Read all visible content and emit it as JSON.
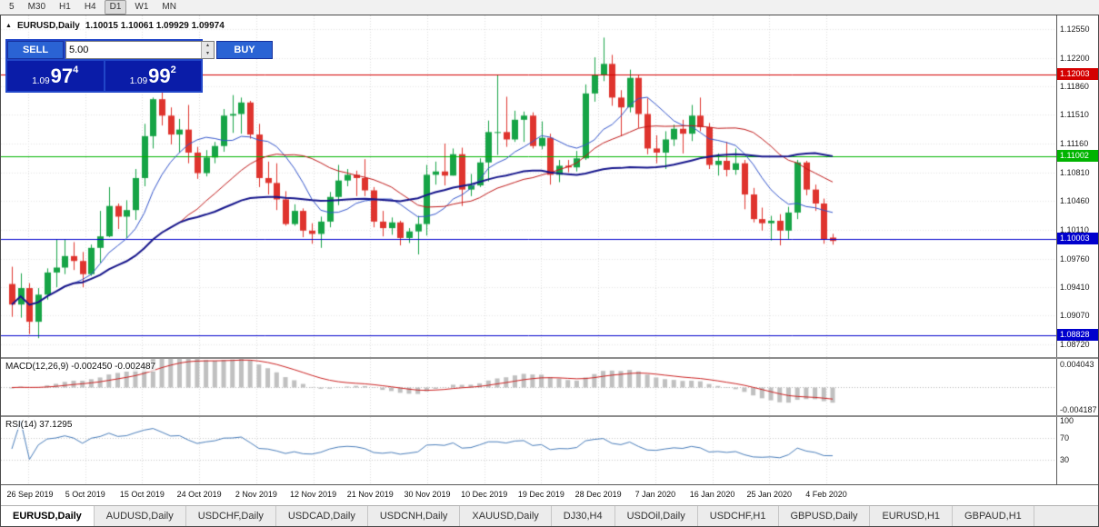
{
  "toolbar": {
    "timeframes": [
      "5",
      "M30",
      "H1",
      "H4",
      "D1",
      "W1",
      "MN"
    ],
    "active": "D1"
  },
  "chart": {
    "header": "EURUSD,Daily",
    "ohlc": "1.10015 1.10061 1.09929 1.09974"
  },
  "trade_panel": {
    "sell_label": "SELL",
    "buy_label": "BUY",
    "volume": "5.00",
    "sell_price": {
      "prefix": "1.09",
      "big": "97",
      "sup": "4"
    },
    "buy_price": {
      "prefix": "1.09",
      "big": "99",
      "sup": "2"
    },
    "colors": {
      "panel": "#2146C8",
      "button": "#2A63D4",
      "price": "#0A1CA8"
    }
  },
  "price_axis": {
    "max": 1.1272,
    "min": 1.0856,
    "ticks": [
      1.1255,
      1.122,
      1.1186,
      1.1151,
      1.1116,
      1.1081,
      1.1046,
      1.1011,
      1.0976,
      1.0941,
      1.0907,
      1.0872
    ]
  },
  "macd_panel": {
    "label": "MACD(12,26,9) -0.002450 -0.002487",
    "axis_top": "0.004043",
    "axis_bottom": "-0.004187"
  },
  "rsi_panel": {
    "label": "RSI(14) 37.1295",
    "axis_ticks": [
      100,
      70,
      30
    ]
  },
  "time_axis": {
    "labels": [
      "26 Sep 2019",
      "5 Oct 2019",
      "15 Oct 2019",
      "24 Oct 2019",
      "2 Nov 2019",
      "12 Nov 2019",
      "21 Nov 2019",
      "30 Nov 2019",
      "10 Dec 2019",
      "19 Dec 2019",
      "28 Dec 2019",
      "7 Jan 2020",
      "16 Jan 2020",
      "25 Jan 2020",
      "4 Feb 2020"
    ]
  },
  "tab_bar": {
    "active_index": 0,
    "tabs": [
      "EURUSD,Daily",
      "AUDUSD,Daily",
      "USDCHF,Daily",
      "USDCAD,Daily",
      "USDCNH,Daily",
      "XAUUSD,Daily",
      "DJ30,H4",
      "USDOil,Daily",
      "USDCHF,H1",
      "GBPUSD,Daily",
      "EURUSD,H1",
      "GBPAUD,H1"
    ]
  },
  "chart_data": {
    "type": "candlestick",
    "symbol": "EURUSD",
    "timeframe": "Daily",
    "title": "EURUSD,Daily",
    "price_range": [
      1.0856,
      1.1272
    ],
    "x_tick_labels": [
      "26 Sep 2019",
      "5 Oct 2019",
      "15 Oct 2019",
      "24 Oct 2019",
      "2 Nov 2019",
      "12 Nov 2019",
      "21 Nov 2019",
      "30 Nov 2019",
      "10 Dec 2019",
      "19 Dec 2019",
      "28 Dec 2019",
      "7 Jan 2020",
      "16 Jan 2020",
      "25 Jan 2020",
      "4 Feb 2020"
    ],
    "colors": {
      "up": "#16A446",
      "down": "#DF342E"
    },
    "candles": [
      [
        1.0945,
        1.0966,
        1.0905,
        1.092
      ],
      [
        1.092,
        1.0958,
        1.0904,
        1.094
      ],
      [
        1.094,
        1.0946,
        1.0884,
        1.0899
      ],
      [
        1.0899,
        1.094,
        1.0879,
        1.0932
      ],
      [
        1.0932,
        1.0964,
        1.0926,
        1.0959
      ],
      [
        1.0959,
        1.0999,
        1.0941,
        1.0965
      ],
      [
        1.0965,
        1.0999,
        1.0957,
        1.0979
      ],
      [
        1.0979,
        1.0996,
        1.0962,
        1.0973
      ],
      [
        1.0973,
        1.0984,
        1.0941,
        1.0957
      ],
      [
        1.0957,
        1.0993,
        1.0955,
        1.0989
      ],
      [
        1.0989,
        1.1034,
        1.0971,
        1.1003
      ],
      [
        1.1003,
        1.1063,
        1.1002,
        1.104
      ],
      [
        1.104,
        1.1043,
        1.1012,
        1.1027
      ],
      [
        1.1027,
        1.1047,
        1.1001,
        1.1035
      ],
      [
        1.1035,
        1.1085,
        1.1023,
        1.1074
      ],
      [
        1.1074,
        1.114,
        1.1064,
        1.1125
      ],
      [
        1.1125,
        1.1172,
        1.111,
        1.117
      ],
      [
        1.117,
        1.1179,
        1.1138,
        1.115
      ],
      [
        1.115,
        1.116,
        1.1115,
        1.1127
      ],
      [
        1.1127,
        1.1146,
        1.1105,
        1.1133
      ],
      [
        1.1133,
        1.1163,
        1.1092,
        1.1105
      ],
      [
        1.1105,
        1.1112,
        1.1073,
        1.108
      ],
      [
        1.108,
        1.1108,
        1.1076,
        1.1099
      ],
      [
        1.1099,
        1.1118,
        1.1092,
        1.1113
      ],
      [
        1.1113,
        1.1158,
        1.1106,
        1.115
      ],
      [
        1.115,
        1.1175,
        1.1129,
        1.1152
      ],
      [
        1.1152,
        1.1172,
        1.1128,
        1.1166
      ],
      [
        1.1166,
        1.1168,
        1.1122,
        1.1127
      ],
      [
        1.1127,
        1.114,
        1.1063,
        1.1074
      ],
      [
        1.1074,
        1.1094,
        1.1054,
        1.1068
      ],
      [
        1.1068,
        1.1092,
        1.1035,
        1.1048
      ],
      [
        1.1048,
        1.1058,
        1.1016,
        1.1018
      ],
      [
        1.1018,
        1.1042,
        1.1016,
        1.1034
      ],
      [
        1.1034,
        1.1037,
        1.1002,
        1.101
      ],
      [
        1.101,
        1.1019,
        1.0994,
        1.1006
      ],
      [
        1.1006,
        1.1027,
        1.0989,
        1.1021
      ],
      [
        1.1021,
        1.1057,
        1.1014,
        1.1051
      ],
      [
        1.1051,
        1.109,
        1.1041,
        1.1071
      ],
      [
        1.1071,
        1.1085,
        1.1064,
        1.1078
      ],
      [
        1.1078,
        1.1083,
        1.1052,
        1.1074
      ],
      [
        1.1074,
        1.1097,
        1.1052,
        1.1059
      ],
      [
        1.1059,
        1.1063,
        1.1014,
        1.1021
      ],
      [
        1.1021,
        1.1034,
        1.1003,
        1.1013
      ],
      [
        1.1013,
        1.1026,
        1.1005,
        1.102
      ],
      [
        1.102,
        1.1022,
        1.0992,
        1.1001
      ],
      [
        1.1001,
        1.1013,
        1.0995,
        1.1009
      ],
      [
        1.1009,
        1.1028,
        1.0981,
        1.1018
      ],
      [
        1.1018,
        1.109,
        1.1004,
        1.1078
      ],
      [
        1.1078,
        1.1094,
        1.1066,
        1.1082
      ],
      [
        1.1082,
        1.1116,
        1.1065,
        1.1077
      ],
      [
        1.1077,
        1.111,
        1.1077,
        1.1103
      ],
      [
        1.1103,
        1.1111,
        1.104,
        1.106
      ],
      [
        1.106,
        1.1079,
        1.1052,
        1.1065
      ],
      [
        1.1065,
        1.1098,
        1.1063,
        1.1093
      ],
      [
        1.1093,
        1.1144,
        1.107,
        1.113
      ],
      [
        1.113,
        1.1199,
        1.1102,
        1.113
      ],
      [
        1.113,
        1.1173,
        1.1112,
        1.1121
      ],
      [
        1.1121,
        1.1156,
        1.1118,
        1.1145
      ],
      [
        1.1145,
        1.1155,
        1.1118,
        1.115
      ],
      [
        1.115,
        1.1154,
        1.111,
        1.1113
      ],
      [
        1.1113,
        1.1143,
        1.1109,
        1.1123
      ],
      [
        1.1123,
        1.1128,
        1.1066,
        1.1078
      ],
      [
        1.1078,
        1.1096,
        1.1069,
        1.1089
      ],
      [
        1.1089,
        1.1096,
        1.1081,
        1.1087
      ],
      [
        1.1087,
        1.1107,
        1.1082,
        1.1098
      ],
      [
        1.1098,
        1.1188,
        1.1096,
        1.1177
      ],
      [
        1.1177,
        1.1221,
        1.1167,
        1.1199
      ],
      [
        1.1199,
        1.1245,
        1.1192,
        1.1213
      ],
      [
        1.1213,
        1.1224,
        1.1162,
        1.1172
      ],
      [
        1.1172,
        1.1181,
        1.1125,
        1.116
      ],
      [
        1.116,
        1.1206,
        1.1154,
        1.1196
      ],
      [
        1.1196,
        1.1199,
        1.1135,
        1.1152
      ],
      [
        1.1152,
        1.1171,
        1.1103,
        1.111
      ],
      [
        1.111,
        1.1126,
        1.1092,
        1.1105
      ],
      [
        1.1105,
        1.1131,
        1.1085,
        1.1121
      ],
      [
        1.1121,
        1.1139,
        1.1113,
        1.1134
      ],
      [
        1.1134,
        1.1145,
        1.1104,
        1.1128
      ],
      [
        1.1128,
        1.1163,
        1.1119,
        1.115
      ],
      [
        1.115,
        1.1172,
        1.1131,
        1.1136
      ],
      [
        1.1136,
        1.1141,
        1.1085,
        1.109
      ],
      [
        1.109,
        1.1104,
        1.1077,
        1.1095
      ],
      [
        1.1095,
        1.1118,
        1.1076,
        1.1084
      ],
      [
        1.1084,
        1.111,
        1.1078,
        1.1092
      ],
      [
        1.1092,
        1.1096,
        1.1036,
        1.1054
      ],
      [
        1.1054,
        1.1062,
        1.102,
        1.1024
      ],
      [
        1.1024,
        1.1038,
        1.101,
        1.1019
      ],
      [
        1.1019,
        1.1028,
        1.0998,
        1.1022
      ],
      [
        1.1022,
        1.103,
        1.0992,
        1.101
      ],
      [
        1.101,
        1.1039,
        1.1,
        1.1032
      ],
      [
        1.1032,
        1.1096,
        1.1024,
        1.1093
      ],
      [
        1.1093,
        1.1095,
        1.1053,
        1.106
      ],
      [
        1.106,
        1.1066,
        1.1034,
        1.1043
      ],
      [
        1.1043,
        1.1049,
        1.0994,
        1.0999
      ],
      [
        1.10015,
        1.10061,
        1.09929,
        1.09974
      ]
    ],
    "moving_averages": [
      {
        "period": 8,
        "color": "#3355CC",
        "width": 1
      },
      {
        "period": 20,
        "color": "#C01818",
        "width": 1
      },
      {
        "period": 45,
        "color": "#16168C",
        "width": 2
      }
    ],
    "levels": [
      {
        "price": 1.12003,
        "color": "#D40000"
      },
      {
        "price": 1.11002,
        "color": "#00B400"
      },
      {
        "price": 1.10003,
        "color": "#0000CD"
      },
      {
        "price": 1.08828,
        "color": "#0000CD"
      }
    ],
    "indicators": {
      "macd": {
        "fast": 12,
        "slow": 26,
        "signal": 9,
        "main_value": -0.00245,
        "signal_value": -0.002487,
        "hist_color": "#C0C0C0",
        "signal_color": "#CC2222",
        "range": 0.0043
      },
      "rsi": {
        "period": 14,
        "value": 37.1295,
        "color": "#4A7EBB",
        "levels": [
          70,
          30
        ]
      }
    }
  }
}
